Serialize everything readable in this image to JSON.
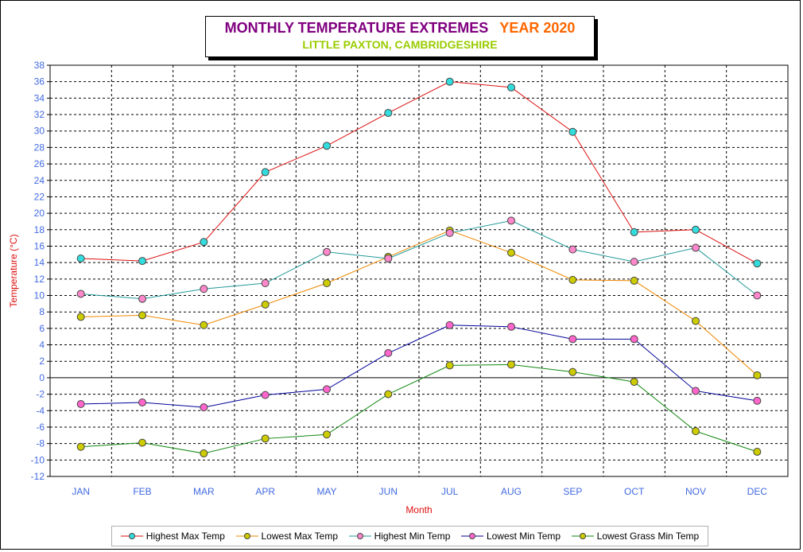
{
  "title": {
    "main": "MONTHLY TEMPERATURE EXTREMES",
    "year": "YEAR  2020",
    "subtitle": "LITTLE PAXTON, CAMBRIDGESHIRE"
  },
  "chart_data": {
    "type": "line",
    "title": "MONTHLY TEMPERATURE EXTREMES    YEAR  2020",
    "subtitle": "LITTLE PAXTON, CAMBRIDGESHIRE",
    "xlabel": "Month",
    "ylabel": "Temperature (°C)",
    "ylim": [
      -12,
      38
    ],
    "ytick_step": 2,
    "grid": true,
    "legend_position": "bottom",
    "categories": [
      "JAN",
      "FEB",
      "MAR",
      "APR",
      "MAY",
      "JUN",
      "JUL",
      "AUG",
      "SEP",
      "OCT",
      "NOV",
      "DEC"
    ],
    "series": [
      {
        "name": "Highest Max Temp",
        "line_color": "#dd1111",
        "marker_color": "#33dddd",
        "values": [
          14.5,
          14.2,
          16.5,
          25.0,
          28.2,
          32.2,
          36.0,
          35.3,
          29.9,
          17.7,
          18.0,
          13.9
        ]
      },
      {
        "name": "Lowest Max Temp",
        "line_color": "#ee8800",
        "marker_color": "#cccc00",
        "values": [
          7.4,
          7.6,
          6.4,
          8.9,
          11.5,
          14.7,
          17.9,
          15.2,
          11.9,
          11.8,
          6.9,
          0.3
        ]
      },
      {
        "name": "Highest Min Temp",
        "line_color": "#229999",
        "marker_color": "#ff88cc",
        "values": [
          10.2,
          9.6,
          10.8,
          11.5,
          15.3,
          14.5,
          17.6,
          19.1,
          15.6,
          14.1,
          15.8,
          10.0
        ]
      },
      {
        "name": "Lowest Min Temp",
        "line_color": "#000099",
        "marker_color": "#ff66cc",
        "values": [
          -3.2,
          -3.0,
          -3.6,
          -2.1,
          -1.4,
          3.0,
          6.4,
          6.2,
          4.7,
          4.7,
          -1.6,
          -2.8
        ]
      },
      {
        "name": "Lowest Grass Min Temp",
        "line_color": "#118811",
        "marker_color": "#cccc00",
        "values": [
          -8.4,
          -7.9,
          -9.2,
          -7.4,
          -6.9,
          -2.0,
          1.5,
          1.6,
          0.7,
          -0.5,
          -6.5,
          -9.0
        ]
      }
    ]
  }
}
